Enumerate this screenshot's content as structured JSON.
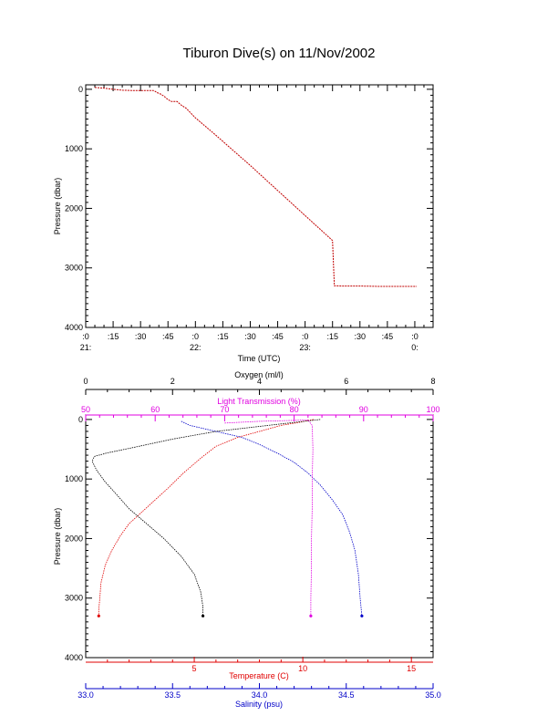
{
  "title": "Tiburon Dive(s) on 11/Nov/2002",
  "colors": {
    "axis": "#000000",
    "temperature": "#e00000",
    "salinity": "#0000c8",
    "oxygen": "#000000",
    "light": "#e000e0",
    "trace": "#c00000"
  },
  "chart_data": [
    {
      "type": "line",
      "title": "Tiburon Dive(s) on 11/Nov/2002",
      "xlabel": "Time (UTC)",
      "ylabel": "Pressure (dbar)",
      "y_inverted": true,
      "ylim": [
        4000,
        -75
      ],
      "yticks": [
        0,
        1000,
        2000,
        3000,
        4000
      ],
      "xlim_minutes": [
        0,
        190
      ],
      "xtick_labels_top": [
        ":0",
        ":15",
        ":30",
        ":45",
        ":0",
        ":15",
        ":30",
        ":45",
        ":0",
        ":15",
        ":30",
        ":45",
        ":0"
      ],
      "xtick_labels_bottom": [
        "21:",
        "",
        "",
        "",
        "22:",
        "",
        "",
        "",
        "23:",
        "",
        "",
        "",
        "0:"
      ],
      "series": [
        {
          "x_minutes": [
            5,
            10,
            15,
            20,
            25,
            30,
            35,
            37,
            38,
            39,
            41,
            43,
            44,
            45,
            46,
            47,
            50,
            52,
            55,
            60,
            70,
            80,
            90,
            100,
            110,
            120,
            130,
            135,
            136,
            140,
            150,
            160,
            170,
            181
          ],
          "pressure": [
            -30,
            -20,
            0,
            15,
            20,
            20,
            20,
            20,
            35,
            55,
            80,
            120,
            150,
            170,
            190,
            205,
            205,
            260,
            320,
            480,
            740,
            1010,
            1280,
            1560,
            1840,
            2120,
            2400,
            2540,
            3300,
            3305,
            3305,
            3310,
            3310,
            3310
          ]
        }
      ],
      "grid": false
    },
    {
      "type": "line",
      "ylabel": "Pressure (dbar)",
      "y_inverted": true,
      "ylim": [
        4000,
        -75
      ],
      "yticks": [
        0,
        1000,
        2000,
        3000,
        4000
      ],
      "axes": {
        "oxygen": {
          "label": "Oxygen (ml/l)",
          "range": [
            0,
            8
          ],
          "ticks": [
            "0",
            "2",
            "4",
            "6",
            "8"
          ],
          "position": "top"
        },
        "light": {
          "label": "Light Transmission (%)",
          "range": [
            50,
            100
          ],
          "ticks": [
            "50",
            "60",
            "70",
            "80",
            "90",
            "100"
          ],
          "position": "top"
        },
        "temperature": {
          "label": "Temperature (C)",
          "range": [
            0,
            16
          ],
          "ticks": [
            "5",
            "10",
            "15"
          ],
          "position": "bottom"
        },
        "salinity": {
          "label": "Salinity (psu)",
          "range": [
            33.0,
            35.0
          ],
          "ticks": [
            "33.0",
            "33.5",
            "34.0",
            "34.5",
            "35.0"
          ],
          "position": "bottom"
        }
      },
      "series": [
        {
          "name": "Temperature",
          "axis": "temperature",
          "x": [
            10.5,
            10.2,
            9.8,
            9.0,
            8.0,
            7.0,
            6.0,
            5.3,
            4.5,
            3.8,
            3.2,
            2.6,
            2.0,
            1.6,
            1.2,
            0.9,
            0.7,
            0.65,
            0.6,
            0.6
          ],
          "y": [
            0,
            20,
            50,
            100,
            200,
            300,
            450,
            650,
            900,
            1150,
            1350,
            1550,
            1750,
            1950,
            2200,
            2450,
            2750,
            3000,
            3200,
            3300
          ]
        },
        {
          "name": "Salinity",
          "axis": "salinity",
          "x": [
            33.55,
            33.6,
            33.75,
            33.9,
            34.0,
            34.1,
            34.2,
            34.28,
            34.35,
            34.42,
            34.48,
            34.52,
            34.55,
            34.57,
            34.58,
            34.59
          ],
          "y": [
            30,
            100,
            200,
            300,
            420,
            560,
            720,
            900,
            1100,
            1350,
            1600,
            1900,
            2200,
            2600,
            3000,
            3300
          ]
        },
        {
          "name": "Oxygen",
          "axis": "oxygen",
          "x": [
            5.4,
            4.2,
            3.0,
            2.0,
            1.1,
            0.5,
            0.2,
            0.15,
            0.25,
            0.45,
            0.7,
            1.0,
            1.4,
            1.8,
            2.2,
            2.5,
            2.65,
            2.7,
            2.7
          ],
          "y": [
            0,
            100,
            200,
            330,
            470,
            560,
            620,
            700,
            850,
            1050,
            1250,
            1500,
            1750,
            2000,
            2300,
            2600,
            2900,
            3150,
            3300
          ]
        },
        {
          "name": "Light Transmission",
          "axis": "light",
          "x": [
            70,
            75,
            80,
            82,
            82.6,
            82.7,
            82.6,
            82.6,
            82.5,
            82.5,
            82.4,
            82.4
          ],
          "y": [
            60,
            30,
            15,
            8,
            100,
            500,
            1000,
            1500,
            2000,
            2500,
            3000,
            3300
          ]
        }
      ],
      "grid": false
    }
  ]
}
